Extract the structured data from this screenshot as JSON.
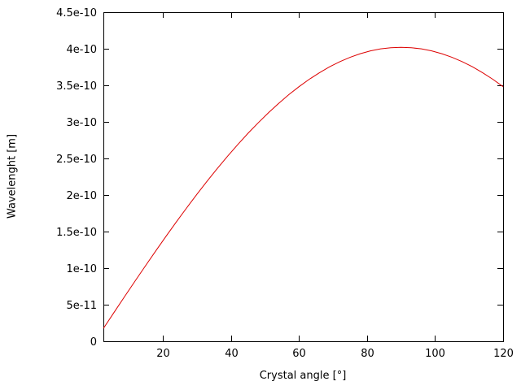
{
  "figure": {
    "background": "#ffffff",
    "axis_color": "#000000",
    "text_color": "#000000",
    "line_color": "#dd0000"
  },
  "chart_data": {
    "type": "line",
    "title": "",
    "xlabel": "Crystal angle [°]",
    "ylabel": "Wavelenght [m]",
    "xlim": [
      2.5,
      120
    ],
    "ylim": [
      0,
      4.5e-10
    ],
    "grid": false,
    "legend": "none",
    "xticks": {
      "values": [
        20,
        40,
        60,
        80,
        100,
        120
      ],
      "labels": [
        "20",
        "40",
        "60",
        "80",
        "100",
        "120"
      ]
    },
    "yticks": {
      "values": [
        0,
        5e-11,
        1e-10,
        1.5e-10,
        2e-10,
        2.5e-10,
        3e-10,
        3.5e-10,
        4e-10,
        4.5e-10
      ],
      "labels": [
        "0",
        "5e-11",
        "1e-10",
        "1.5e-10",
        "2e-10",
        "2.5e-10",
        "3e-10",
        "3.5e-10",
        "4e-10",
        "4.5e-10"
      ]
    },
    "series": [
      {
        "name": "wavelength",
        "x": [
          2.5,
          6,
          9,
          12,
          15,
          18,
          21,
          24,
          27,
          30,
          33,
          36,
          39,
          42,
          45,
          48,
          51,
          54,
          57,
          60,
          63,
          66,
          69,
          72,
          75,
          78,
          81,
          84,
          87,
          90,
          93,
          96,
          99,
          102,
          105,
          108,
          111,
          114,
          117,
          120
        ],
        "y": [
          1.75e-11,
          4.2e-11,
          6.29e-11,
          8.36e-11,
          1.04e-10,
          1.242e-10,
          1.441e-10,
          1.635e-10,
          1.825e-10,
          2.01e-10,
          2.189e-10,
          2.363e-10,
          2.53e-10,
          2.69e-10,
          2.843e-10,
          2.987e-10,
          3.124e-10,
          3.252e-10,
          3.372e-10,
          3.481e-10,
          3.582e-10,
          3.672e-10,
          3.753e-10,
          3.823e-10,
          3.883e-10,
          3.932e-10,
          3.971e-10,
          3.998e-10,
          4.014e-10,
          4.02e-10,
          4.014e-10,
          3.998e-10,
          3.971e-10,
          3.932e-10,
          3.883e-10,
          3.823e-10,
          3.753e-10,
          3.672e-10,
          3.582e-10,
          3.481e-10
        ]
      }
    ]
  }
}
